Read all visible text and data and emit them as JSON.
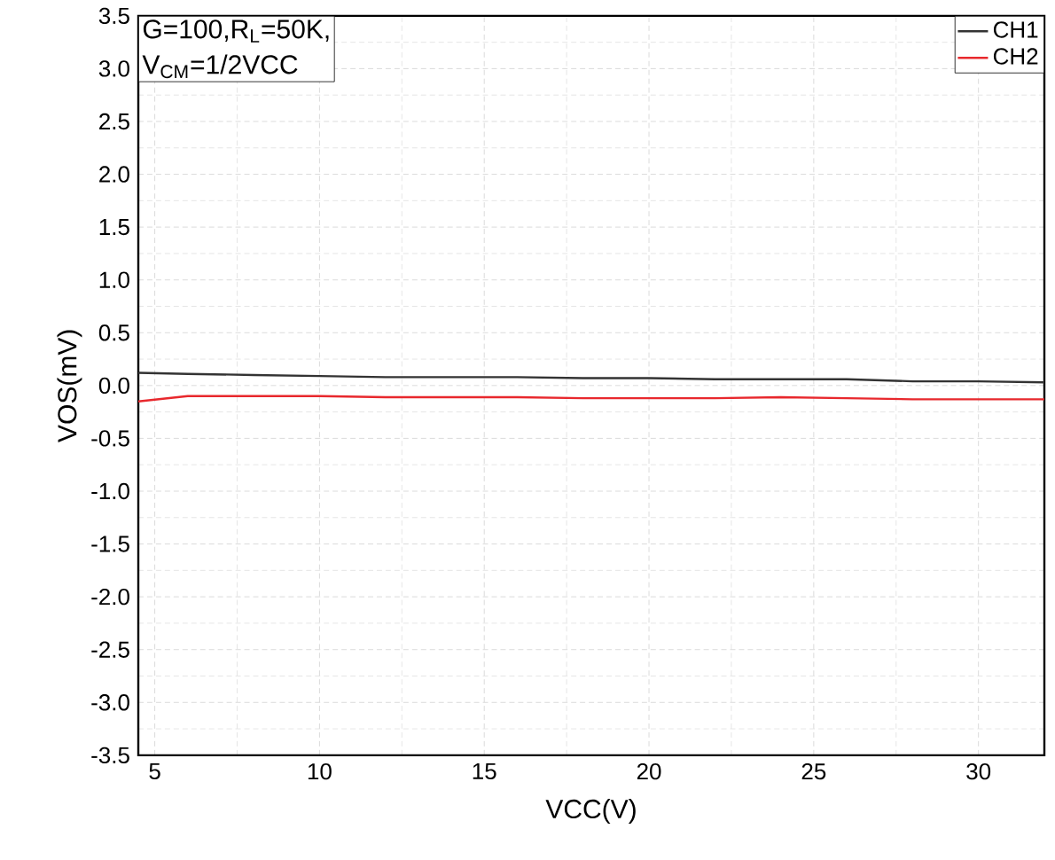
{
  "chart_data": {
    "type": "line",
    "xlabel": "VCC(V)",
    "ylabel": "VOS(mV)",
    "annotations": [
      "G=100,R$_{L}$=50K,",
      "V$_{CM}$=1/2VCC"
    ],
    "x": [
      4.5,
      6,
      8,
      10,
      12,
      14,
      16,
      18,
      20,
      22,
      24,
      26,
      28,
      30,
      32
    ],
    "series": [
      {
        "name": "CH1",
        "color": "#333333",
        "values": [
          0.12,
          0.11,
          0.1,
          0.09,
          0.08,
          0.08,
          0.08,
          0.07,
          0.07,
          0.06,
          0.06,
          0.06,
          0.04,
          0.04,
          0.03
        ]
      },
      {
        "name": "CH2",
        "color": "#e8282d",
        "values": [
          -0.15,
          -0.1,
          -0.1,
          -0.1,
          -0.11,
          -0.11,
          -0.11,
          -0.12,
          -0.12,
          -0.12,
          -0.11,
          -0.12,
          -0.13,
          -0.13,
          -0.13
        ]
      }
    ],
    "xlim": [
      4.5,
      32
    ],
    "xticks": [
      5,
      10,
      15,
      20,
      25,
      30
    ],
    "ylim": [
      -3.5,
      3.5
    ],
    "yticks": [
      -3.5,
      {
        "value": -3,
        "label": "-3.0"
      },
      -2.5,
      {
        "value": -2,
        "label": "-2.0"
      },
      -1.5,
      {
        "value": -1,
        "label": "-1.0"
      },
      -0.5,
      {
        "value": 0,
        "label": "0.0"
      },
      0.5,
      {
        "value": 1,
        "label": "1.0"
      },
      1.5,
      {
        "value": 2,
        "label": "2.0"
      },
      2.5,
      {
        "value": 3,
        "label": "3.0"
      },
      3.5
    ],
    "grid": true,
    "legend": "top right",
    "marker": "none",
    "line_style": "solid"
  }
}
